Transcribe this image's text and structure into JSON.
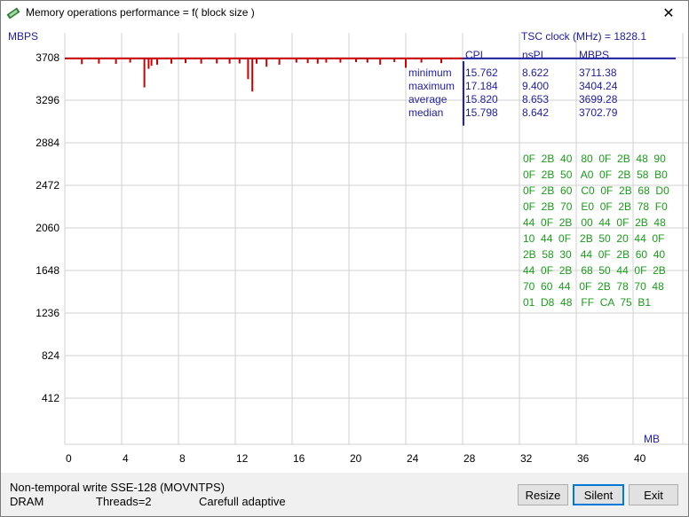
{
  "window": {
    "title": "Memory operations performance = f( block size )",
    "close_glyph": "✕"
  },
  "chart_data": {
    "type": "line",
    "ylabel": "MBPS",
    "xlabel": "MB",
    "ylim": [
      0,
      3708
    ],
    "xlim": [
      0,
      42
    ],
    "y_ticks": [
      "3708",
      "3296",
      "2884",
      "2472",
      "2060",
      "1648",
      "1236",
      "824",
      "412"
    ],
    "x_ticks": [
      "0",
      "4",
      "8",
      "12",
      "16",
      "20",
      "24",
      "28",
      "32",
      "36",
      "40"
    ],
    "grid": true,
    "series": [
      {
        "color": "#cc0000",
        "baseline": 3700,
        "x_range": [
          0,
          28
        ],
        "dips": [
          [
            1.2,
            3645
          ],
          [
            2.4,
            3650
          ],
          [
            3.6,
            3648
          ],
          [
            4.6,
            3660
          ],
          [
            5.6,
            3420
          ],
          [
            5.9,
            3600
          ],
          [
            6.1,
            3630
          ],
          [
            6.5,
            3640
          ],
          [
            7.5,
            3650
          ],
          [
            8.5,
            3655
          ],
          [
            9.6,
            3650
          ],
          [
            10.7,
            3652
          ],
          [
            11.6,
            3650
          ],
          [
            12.3,
            3652
          ],
          [
            12.9,
            3500
          ],
          [
            13.2,
            3380
          ],
          [
            13.5,
            3650
          ],
          [
            14.2,
            3620
          ],
          [
            15.1,
            3640
          ],
          [
            16.3,
            3660
          ],
          [
            17.1,
            3655
          ],
          [
            17.8,
            3650
          ],
          [
            18.4,
            3660
          ],
          [
            19.4,
            3660
          ],
          [
            20.5,
            3665
          ],
          [
            21.3,
            3660
          ],
          [
            22.2,
            3640
          ],
          [
            23.2,
            3665
          ],
          [
            24.0,
            3610
          ],
          [
            25.1,
            3660
          ],
          [
            26.5,
            3655
          ]
        ]
      },
      {
        "color": "#2020a0",
        "baseline": 3700,
        "x_range": [
          28,
          43
        ]
      }
    ],
    "median_marker": {
      "x": 28,
      "color": "#2020c0",
      "top": 3708,
      "bottom": 3050
    }
  },
  "tsc": {
    "label": "TSC clock (MHz)  = 1828.1"
  },
  "stats": {
    "headers": [
      "CPI",
      "nsPI",
      "MBPS"
    ],
    "rows": [
      {
        "label": "minimum",
        "cpi": "15.762",
        "nspi": "8.622",
        "mbps": "3711.38"
      },
      {
        "label": "maximum",
        "cpi": "17.184",
        "nspi": "9.400",
        "mbps": "3404.24"
      },
      {
        "label": "average",
        "cpi": "15.820",
        "nspi": "8.653",
        "mbps": "3699.28"
      },
      {
        "label": "median",
        "cpi": "15.798",
        "nspi": "8.642",
        "mbps": "3702.79"
      }
    ]
  },
  "hex_dump": [
    "0F  2B  40   80  0F  2B  48  90",
    "0F  2B  50   A0  0F  2B  58  B0",
    "0F  2B  60   C0  0F  2B  68  D0",
    "0F  2B  70   E0  0F  2B  78  F0",
    "44  0F  2B   00  44  0F  2B  48",
    "10  44  0F   2B  50  20  44  0F",
    "2B  58  30   44  0F  2B  60  40",
    "44  0F  2B   68  50  44  0F  2B",
    "70  60  44   0F  2B  78  70  48",
    "01  D8  48   FF  CA  75  B1"
  ],
  "status": {
    "line1": "Non-temporal write SSE-128 (MOVNTPS)",
    "dram": "DRAM",
    "threads": "Threads=2",
    "mode": "Carefull adaptive"
  },
  "buttons": {
    "resize": "Resize",
    "silent": "Silent",
    "exit": "Exit"
  },
  "colors": {
    "axis_text": "#000000",
    "blue_text": "#2020a0",
    "green_text": "#1a9a1a",
    "grid": "#d0d0d0"
  }
}
